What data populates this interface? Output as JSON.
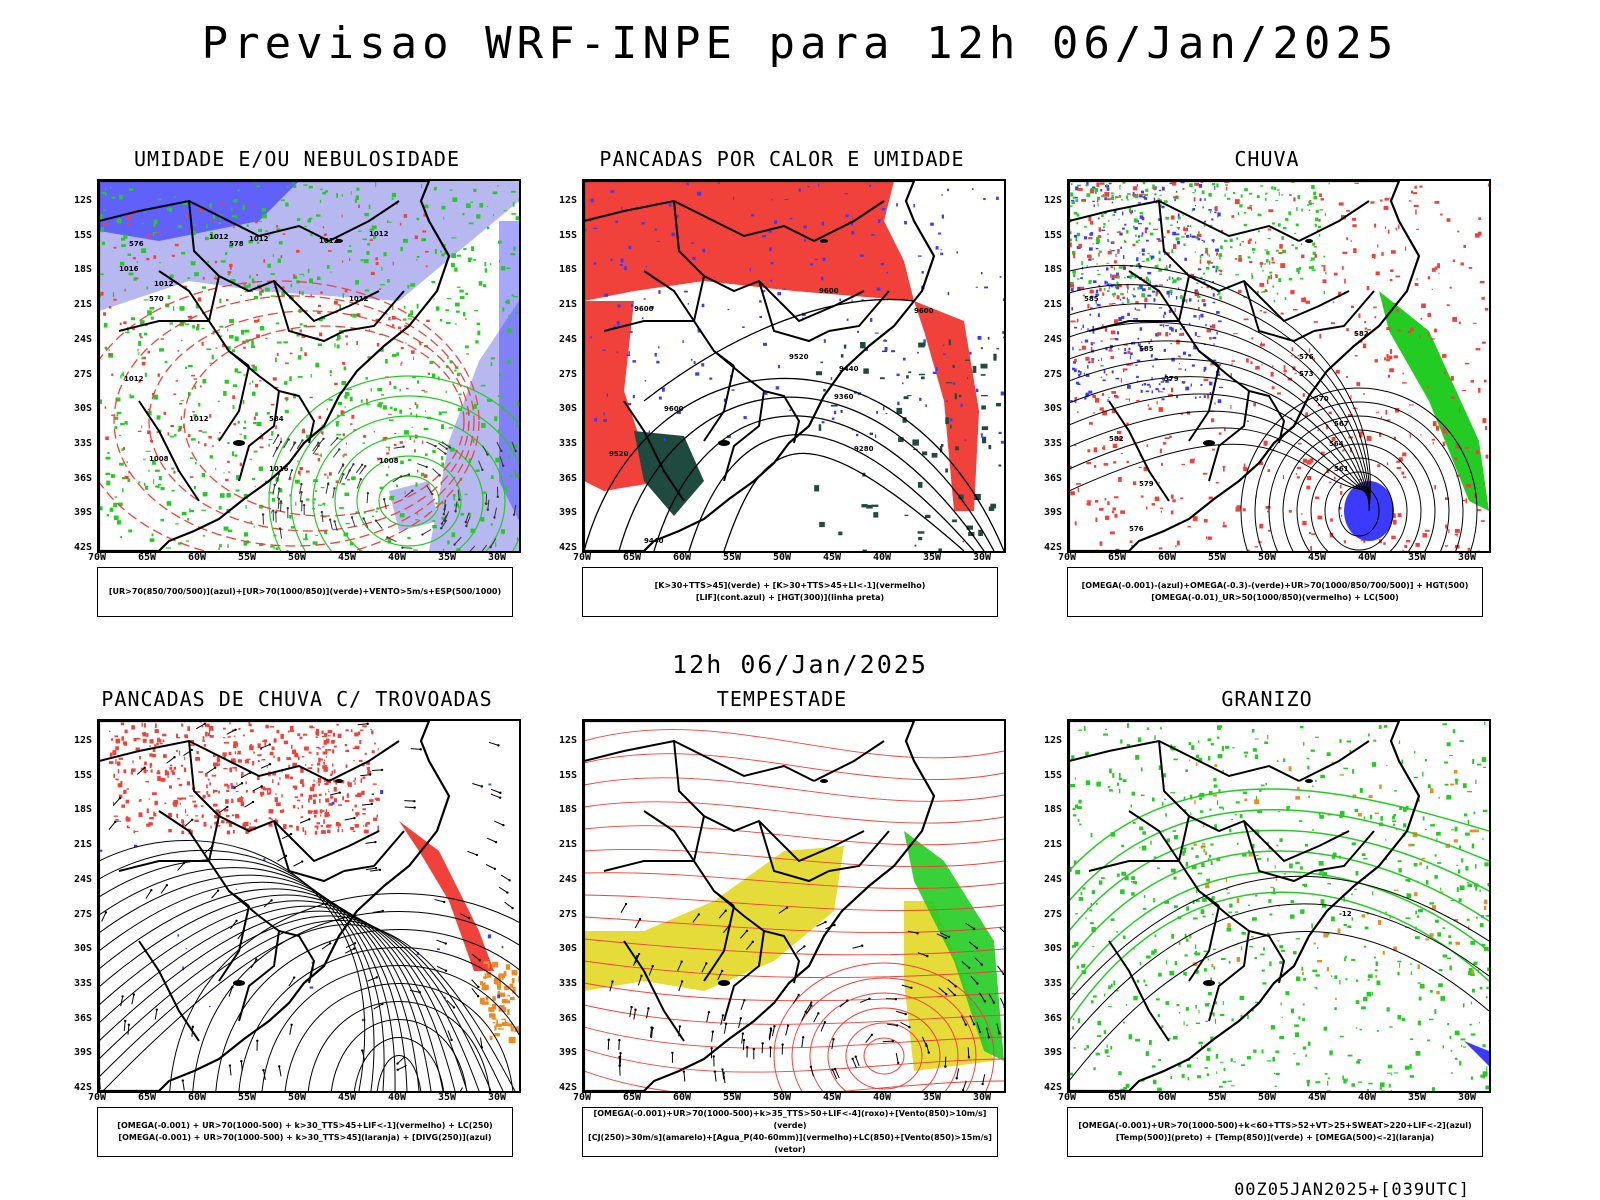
{
  "header": {
    "title": "Previsao WRF-INPE  para 12h 06/Jan/2025",
    "subtitle": "12h 06/Jan/2025",
    "footer": "00Z05JAN2025+[039UTC]"
  },
  "axes": {
    "lat_labels": [
      "12S",
      "15S",
      "18S",
      "21S",
      "24S",
      "27S",
      "30S",
      "33S",
      "36S",
      "39S",
      "42S"
    ],
    "lon_labels": [
      "70W",
      "65W",
      "60W",
      "55W",
      "50W",
      "45W",
      "40W",
      "35W",
      "30W"
    ]
  },
  "panels": [
    {
      "title": "UMIDADE E/OU NEBULOSIDADE",
      "legend": [
        "[UR>70(850/700/500)](azul)+[UR>70(1000/850)](verde)+VENTO>5m/s+ESP(500/1000)"
      ],
      "contours": [
        "1012",
        "1012",
        "1012",
        "1012",
        "1016",
        "1012",
        "1012",
        "1012",
        "1008",
        "1016",
        "576",
        "578",
        "570",
        "584",
        "1012",
        "1008"
      ]
    },
    {
      "title": "PANCADAS POR CALOR E UMIDADE",
      "legend": [
        "[K>30+TTS>45](verde) + [K>30+TTS>45+LI<-1](vermelho)",
        "[LIF](cont.azul) + [HGT(300)](linha preta)"
      ],
      "contours": [
        "9600",
        "9600",
        "9600",
        "9520",
        "9440",
        "9360",
        "9280",
        "9600",
        "9520",
        "9440"
      ]
    },
    {
      "title": "CHUVA",
      "legend": [
        "[OMEGA(-0.001)-(azul)+OMEGA(-0.3)-(verde)+UR>70(1000/850/700/500)] + HGT(500)",
        "[OMEGA(-0.01)_UR>50(1000/850)(vermelho) + LC(500)"
      ],
      "contours": [
        "585",
        "585",
        "582",
        "576",
        "573",
        "570",
        "567",
        "564",
        "561",
        "579",
        "576",
        "579",
        "582"
      ]
    },
    {
      "title": "PANCADAS DE CHUVA C/ TROVOADAS",
      "legend": [
        "[OMEGA(-0.001) + UR>70(1000-500) + k>30_TTS>45+LIF<-1](vermelho) + LC(250)",
        "[OMEGA(-0.001) + UR>70(1000-500) + k>30_TTS>45](laranja) + [DIVG(250)](azul)"
      ],
      "contours": []
    },
    {
      "title": "TEMPESTADE",
      "legend": [
        "[OMEGA(-0.001)+UR>70(1000-500)+k>35_TTS>50+LIF<-4](roxo)+[Vento(850)>10m/s](verde)",
        "[CJ(250)>30m/s](amarelo)+[Agua_P(40-60mm)](vermelho)+LC(850)+[Vento(850)>15m/s](vetor)"
      ],
      "contours": []
    },
    {
      "title": "GRANIZO",
      "legend": [
        "[OMEGA(-0.001)+UR>70(1000-500)+k<60+TTS>52+VT>25+SWEAT>220+LIF<-2](azul)",
        "[Temp(500)](preto) + [Temp(850)](verde) + [OMEGA(500)<-2](laranja)"
      ],
      "contours": [
        "-12"
      ]
    }
  ],
  "colors": {
    "red": "#f0413a",
    "green": "#22cc22",
    "blue": "#3b3bff",
    "lightblue": "#b8b8f0",
    "yellow": "#e5dc3a",
    "orange": "#ee8a22",
    "darkgreen": "#1f4a3f"
  }
}
